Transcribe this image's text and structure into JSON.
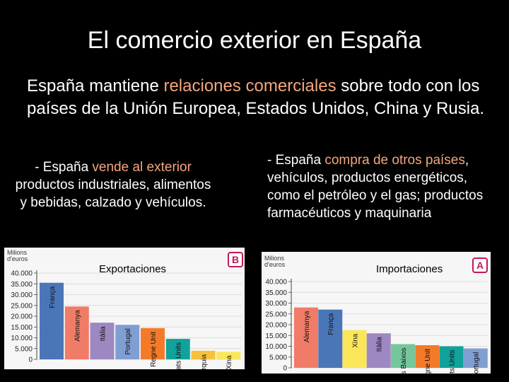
{
  "slide": {
    "title": "El comercio exterior en España",
    "intro_a": "España mantiene ",
    "intro_hl": "relaciones comerciales",
    "intro_b": " sobre todo con los países de la Unión Europea, Estados Unidos, China y Rusia.",
    "left_a": "- España ",
    "left_hl": "vende al exterior",
    "left_b": " productos industriales, alimentos y bebidas, calzado y vehículos.",
    "right_a": "- España ",
    "right_hl": "compra de otros países",
    "right_b": ", vehículos, productos energéticos, como el petróleo y el gas; productos farmacéuticos y maquinaria"
  },
  "chart_data": [
    {
      "type": "bar",
      "title": "Exportaciones",
      "badge": "B",
      "units_line1": "Milions",
      "units_line2": "d'euros",
      "categories": [
        "França",
        "Alemanya",
        "Itàlia",
        "Portugal",
        "Regne Unit",
        "Estats Units",
        "Turquia",
        "Xina"
      ],
      "values": [
        35500,
        24500,
        17000,
        16000,
        14500,
        9500,
        4000,
        3500
      ],
      "colors": [
        "#4a76b8",
        "#f07c68",
        "#9d88c2",
        "#7f9fd3",
        "#f47a2a",
        "#11a29c",
        "#f7c23a",
        "#fbe65a"
      ],
      "yticks": [
        "40.000",
        "35.000",
        "30.000",
        "25.000",
        "20.000",
        "15.000",
        "10.000",
        "5.000",
        "0"
      ],
      "ylim": [
        0,
        40000
      ],
      "grid": true
    },
    {
      "type": "bar",
      "title": "Importaciones",
      "badge": "A",
      "units_line1": "Milions",
      "units_line2": "d'euros",
      "categories": [
        "Alemanya",
        "França",
        "Xina",
        "Itàlia",
        "Països Baixos",
        "Regne Unit",
        "Estats Units",
        "Portugal"
      ],
      "values": [
        28000,
        27000,
        17500,
        16000,
        11000,
        10500,
        10000,
        9000
      ],
      "colors": [
        "#f07c68",
        "#4a76b8",
        "#fbe65a",
        "#9d88c2",
        "#76c69c",
        "#f47a2a",
        "#11a29c",
        "#7f9fd3"
      ],
      "yticks": [
        "40.000",
        "35.000",
        "30.000",
        "25.000",
        "20.000",
        "15.000",
        "10.000",
        "5.000",
        "0"
      ],
      "ylim": [
        0,
        40000
      ],
      "grid": true
    }
  ]
}
